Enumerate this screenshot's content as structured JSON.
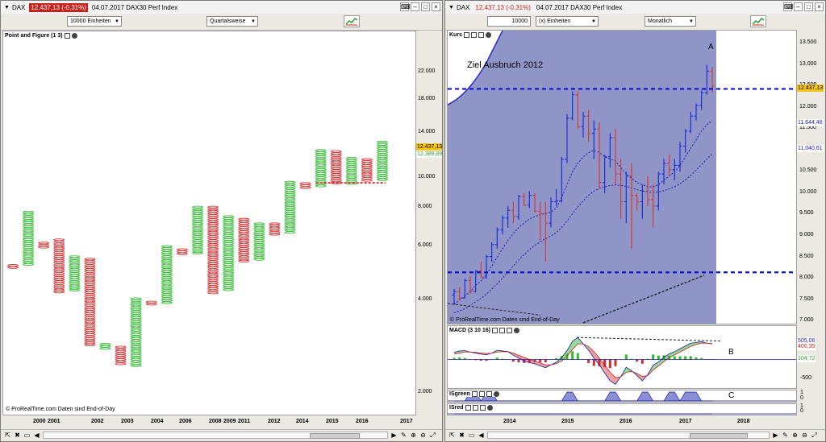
{
  "left": {
    "title": {
      "symbol": "DAX",
      "price": "12.437,13 (-0,31%)",
      "date_name": "04.07.2017  DAX30 Perf Index"
    },
    "toolbar": {
      "units": "10000 Einheiten",
      "period": "Quartalsweise"
    },
    "panel_title": "Point and Figure (1 3)",
    "footer": "© ProRealTime.com  Daten sind End-of-Day",
    "price_badges": [
      {
        "text": "12.437,13",
        "bg": "#f5c518"
      },
      {
        "text": "12.389,89",
        "bg": "#ffffff",
        "color": "#2e9e2e"
      }
    ]
  },
  "right": {
    "title": {
      "symbol": "DAX",
      "price": "12.437,13 (-0,31%)",
      "date_name": "04.07.2017  DAX30 Perf Index"
    },
    "toolbar": {
      "units_value": "10000",
      "units": "(x) Einheiten",
      "period": "Monatlich"
    },
    "kurs_label": "Kurs",
    "macd_label": "MACD (3 10 16)",
    "isgreen_label": "ISgreen",
    "isred_label": "ISred",
    "footer": "© ProRealTime.com  Daten sind End-of-Day",
    "annotations": {
      "ziel": "Ziel Ausbruch 2012",
      "a": "A",
      "b": "B",
      "c": "C"
    },
    "price_badges": [
      {
        "text": "12.437,13",
        "bg": "#f5c518"
      },
      {
        "text": "11.644,46",
        "bg": "#ffffff",
        "color": "#1a1ab0"
      },
      {
        "text": "11.040,61",
        "bg": "#ffffff",
        "color": "#1a1ab0"
      }
    ],
    "macd_badges": [
      {
        "text": "505,06",
        "bg": "#ffffff",
        "color": "#1a1ab0"
      },
      {
        "text": "400,35",
        "bg": "#ffffff",
        "color": "#c8211b"
      },
      {
        "text": "104,72",
        "bg": "#ffffff",
        "color": "#2e9e2e"
      }
    ],
    "macd_ticks": [
      "500",
      "0",
      "-500"
    ],
    "isgreen_ticks": [
      "1",
      "0"
    ],
    "isred_ticks": [
      "1",
      "0"
    ]
  },
  "chart_data": [
    {
      "type": "point-and-figure",
      "scale": "log",
      "ylim": [
        1700,
        30000
      ],
      "y_ticks": [
        "22.000",
        "18.000",
        "14.000",
        "10.000",
        "8.000",
        "6.000",
        "4.000",
        "2.000"
      ],
      "y_tick_values": [
        22000,
        18000,
        14000,
        10000,
        8000,
        6000,
        4000,
        2000
      ],
      "x_ticks": [
        "2000",
        "2001",
        "2002",
        "2003",
        "2004",
        "2006",
        "2008",
        "2009",
        "2011",
        "2012",
        "2014",
        "2015",
        "2016",
        "2017"
      ],
      "colors": {
        "up": "#3cbf3c",
        "down": "#d43a3a"
      },
      "columns": [
        {
          "dir": "down",
          "high": 5200,
          "low": 5050
        },
        {
          "dir": "up",
          "high": 7750,
          "low": 5200
        },
        {
          "dir": "down",
          "high": 6150,
          "low": 5950
        },
        {
          "dir": "down",
          "high": 6300,
          "low": 4200
        },
        {
          "dir": "up",
          "high": 5550,
          "low": 4300
        },
        {
          "dir": "down",
          "high": 5450,
          "low": 2850
        },
        {
          "dir": "up",
          "high": 2880,
          "low": 2780
        },
        {
          "dir": "down",
          "high": 2820,
          "low": 2450
        },
        {
          "dir": "up",
          "high": 4050,
          "low": 2450
        },
        {
          "dir": "down",
          "high": 3950,
          "low": 3850
        },
        {
          "dir": "up",
          "high": 6000,
          "low": 3900
        },
        {
          "dir": "down",
          "high": 5850,
          "low": 5650
        },
        {
          "dir": "up",
          "high": 8050,
          "low": 5700
        },
        {
          "dir": "down",
          "high": 8050,
          "low": 4200
        },
        {
          "dir": "up",
          "high": 7500,
          "low": 4300
        },
        {
          "dir": "down",
          "high": 7350,
          "low": 5300
        },
        {
          "dir": "up",
          "high": 7100,
          "low": 5400
        },
        {
          "dir": "down",
          "high": 7100,
          "low": 6500
        },
        {
          "dir": "up",
          "high": 9700,
          "low": 6600
        },
        {
          "dir": "down",
          "high": 9600,
          "low": 9200
        },
        {
          "dir": "up",
          "high": 12300,
          "low": 9300
        },
        {
          "dir": "down",
          "high": 12200,
          "low": 9500
        },
        {
          "dir": "up",
          "high": 11600,
          "low": 9600
        },
        {
          "dir": "down",
          "high": 11500,
          "low": 9700
        },
        {
          "dir": "up",
          "high": 13100,
          "low": 9800
        }
      ]
    },
    {
      "type": "candlestick",
      "y_ticks": [
        "13.500",
        "13.000",
        "12.500",
        "12.000",
        "11.500",
        "11.000",
        "10.500",
        "10.000",
        "9.500",
        "9.000",
        "8.500",
        "8.000",
        "7.500",
        "7.000"
      ],
      "y_tick_values": [
        13500,
        13000,
        12500,
        12000,
        11500,
        11000,
        10500,
        10000,
        9500,
        9000,
        8500,
        8000,
        7500,
        7000
      ],
      "ylim": [
        6950,
        13800
      ],
      "x_ticks": [
        "2014",
        "2015",
        "2016",
        "2017",
        "2018"
      ],
      "resistance_level": 12437,
      "support_level": 8150,
      "ohlc": [
        [
          7620,
          7760,
          7410,
          7700
        ],
        [
          7700,
          7800,
          7500,
          7550
        ],
        [
          7550,
          8000,
          7540,
          7960
        ],
        [
          7960,
          8050,
          7640,
          7700
        ],
        [
          7700,
          8200,
          7680,
          8180
        ],
        [
          8180,
          8400,
          8020,
          8040
        ],
        [
          8040,
          8560,
          8000,
          8520
        ],
        [
          8520,
          8850,
          8400,
          8800
        ],
        [
          8800,
          9200,
          8700,
          9140
        ],
        [
          9140,
          9480,
          9040,
          9420
        ],
        [
          9420,
          9700,
          9190,
          9600
        ],
        [
          9600,
          9800,
          9300,
          9450
        ],
        [
          9450,
          9960,
          9380,
          9920
        ],
        [
          9920,
          10000,
          9700,
          9720
        ],
        [
          9720,
          10050,
          9650,
          9950
        ],
        [
          9950,
          10000,
          9550,
          9580
        ],
        [
          9580,
          9800,
          8900,
          9520
        ],
        [
          9520,
          9800,
          8400,
          9300
        ],
        [
          9300,
          9900,
          9200,
          9800
        ],
        [
          9800,
          10100,
          9700,
          9820
        ],
        [
          9820,
          10850,
          9780,
          10790
        ],
        [
          10790,
          11850,
          10700,
          11750
        ],
        [
          11750,
          12380,
          11700,
          12300
        ],
        [
          12300,
          12390,
          11500,
          11550
        ],
        [
          11550,
          11900,
          11300,
          11800
        ],
        [
          11800,
          11950,
          11200,
          11400
        ],
        [
          11400,
          11700,
          10800,
          11500
        ],
        [
          11500,
          11650,
          10100,
          10250
        ],
        [
          10250,
          10900,
          10000,
          10850
        ],
        [
          10850,
          11400,
          10600,
          11300
        ],
        [
          11300,
          11500,
          10200,
          10450
        ],
        [
          10450,
          10800,
          9400,
          9800
        ],
        [
          9800,
          10500,
          9300,
          10400
        ],
        [
          10400,
          10700,
          8700,
          9950
        ],
        [
          9950,
          10000,
          9600,
          9800
        ],
        [
          9800,
          10200,
          9400,
          10050
        ],
        [
          10050,
          10400,
          9700,
          9850
        ],
        [
          9850,
          10200,
          9200,
          9700
        ],
        [
          9700,
          10500,
          9600,
          10450
        ],
        [
          10450,
          10800,
          10200,
          10700
        ],
        [
          10700,
          10900,
          10400,
          10550
        ],
        [
          10550,
          10800,
          10300,
          10650
        ],
        [
          10650,
          11200,
          10500,
          11100
        ],
        [
          11100,
          11500,
          10950,
          11450
        ],
        [
          11450,
          11900,
          11400,
          11800
        ],
        [
          11800,
          12100,
          11700,
          12050
        ],
        [
          12050,
          12400,
          11950,
          12350
        ],
        [
          12350,
          13000,
          12300,
          12850
        ],
        [
          12850,
          12950,
          12350,
          12500
        ]
      ],
      "ma_fast": [
        7400,
        7500,
        7600,
        7700,
        7850,
        7950,
        8100,
        8300,
        8500,
        8700,
        8900,
        9050,
        9200,
        9300,
        9400,
        9450,
        9500,
        9520,
        9560,
        9650,
        9900,
        10200,
        10500,
        10700,
        10850,
        10950,
        11000,
        10950,
        10850,
        10800,
        10750,
        10600,
        10450,
        10350,
        10250,
        10200,
        10150,
        10150,
        10200,
        10300,
        10400,
        10500,
        10650,
        10850,
        11050,
        11250,
        11450,
        11600,
        11700
      ],
      "ma_slow": [
        7200,
        7250,
        7300,
        7380,
        7460,
        7540,
        7640,
        7760,
        7880,
        8020,
        8160,
        8300,
        8440,
        8560,
        8680,
        8780,
        8860,
        8940,
        9000,
        9080,
        9200,
        9350,
        9520,
        9680,
        9820,
        9950,
        10050,
        10110,
        10150,
        10180,
        10190,
        10180,
        10160,
        10120,
        10080,
        10050,
        10030,
        10020,
        10030,
        10060,
        10100,
        10150,
        10220,
        10310,
        10420,
        10540,
        10670,
        10800,
        10920
      ]
    },
    {
      "type": "macd",
      "params": "3 10 16",
      "values": [
        200,
        240,
        250,
        210,
        180,
        150,
        130,
        180,
        260,
        240,
        220,
        120,
        40,
        -40,
        -90,
        -120,
        -180,
        -230,
        -150,
        -80,
        60,
        250,
        510,
        620,
        440,
        260,
        40,
        -150,
        -380,
        -600,
        -700,
        -480,
        -220,
        -320,
        -450,
        -600,
        -430,
        -160,
        -70,
        60,
        160,
        220,
        300,
        380,
        460,
        480,
        500,
        460,
        440
      ],
      "signal": [
        150,
        180,
        210,
        210,
        200,
        185,
        170,
        175,
        210,
        220,
        220,
        180,
        120,
        60,
        0,
        -50,
        -100,
        -150,
        -150,
        -120,
        -40,
        90,
        280,
        440,
        440,
        360,
        220,
        40,
        -160,
        -360,
        -510,
        -490,
        -360,
        -340,
        -390,
        -480,
        -450,
        -300,
        -180,
        -60,
        50,
        130,
        210,
        290,
        370,
        420,
        460,
        460,
        450
      ]
    },
    {
      "type": "indicator",
      "name": "ISgreen",
      "values": [
        0,
        0,
        0,
        1,
        1,
        0,
        1,
        1,
        0,
        0,
        0,
        0,
        0,
        0,
        0,
        0,
        0,
        0,
        0,
        0,
        0,
        1,
        1,
        0,
        0,
        0,
        0,
        0,
        0,
        1,
        1,
        0,
        0,
        0,
        0,
        1,
        1,
        0,
        0,
        0,
        1,
        1,
        0,
        1,
        1,
        1,
        0,
        0,
        0
      ]
    },
    {
      "type": "indicator",
      "name": "ISred",
      "values": [
        0,
        0,
        0,
        0,
        0,
        0,
        0,
        0,
        0,
        0,
        0,
        0,
        0,
        0,
        0,
        0,
        0,
        0,
        0,
        0,
        0,
        0,
        0,
        0,
        0,
        0,
        0,
        0,
        0,
        0,
        0,
        0,
        0,
        0,
        0,
        0,
        0,
        0,
        0,
        0,
        0,
        0,
        0,
        0,
        0,
        0,
        0,
        0,
        0
      ]
    }
  ]
}
